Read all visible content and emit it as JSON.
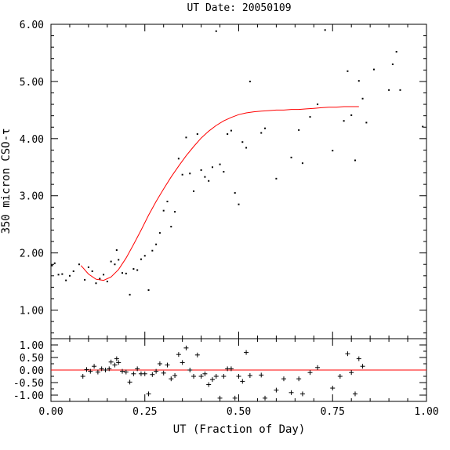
{
  "chart_data": [
    {
      "type": "scatter",
      "title": "UT Date: 20050109",
      "xlabel": "",
      "ylabel": "350 micron CSO-τ",
      "xlim": [
        0.0,
        1.0
      ],
      "ylim": [
        0.5,
        6.0
      ],
      "ytick_labels": [
        "1.00",
        "2.00",
        "3.00",
        "4.00",
        "5.00",
        "6.00"
      ],
      "marker_color": "#000000",
      "fit_color": "#ff0000",
      "series": [
        {
          "marker": "dot",
          "x": [
            0.003,
            0.01,
            0.02,
            0.03,
            0.04,
            0.05,
            0.06,
            0.075,
            0.09,
            0.1,
            0.11,
            0.12,
            0.13,
            0.14,
            0.15,
            0.16,
            0.17,
            0.175,
            0.18,
            0.19,
            0.2,
            0.21,
            0.22,
            0.23,
            0.24,
            0.25,
            0.26,
            0.27,
            0.28,
            0.29,
            0.3,
            0.31,
            0.32,
            0.33,
            0.34,
            0.35,
            0.36,
            0.37,
            0.38,
            0.39,
            0.4,
            0.41,
            0.42,
            0.43,
            0.44,
            0.45,
            0.46,
            0.47,
            0.48,
            0.49,
            0.5,
            0.51,
            0.52,
            0.53,
            0.56,
            0.57,
            0.6,
            0.64,
            0.66,
            0.67,
            0.69,
            0.71,
            0.73,
            0.75,
            0.78,
            0.79,
            0.8,
            0.81,
            0.82,
            0.83,
            0.84,
            0.86,
            0.9,
            0.91,
            0.92,
            0.93,
            0.99
          ],
          "y": [
            1.78,
            1.82,
            1.62,
            1.63,
            1.52,
            1.6,
            1.68,
            1.8,
            1.53,
            1.75,
            1.68,
            1.47,
            1.55,
            1.62,
            1.5,
            1.85,
            1.8,
            2.05,
            1.88,
            1.65,
            1.64,
            1.27,
            1.72,
            1.7,
            1.89,
            1.95,
            1.35,
            2.04,
            2.15,
            2.35,
            2.74,
            2.9,
            2.46,
            2.72,
            3.65,
            3.37,
            4.02,
            3.39,
            3.08,
            4.08,
            3.45,
            3.33,
            3.26,
            3.5,
            5.88,
            3.55,
            3.42,
            4.08,
            4.14,
            3.05,
            2.85,
            3.94,
            3.84,
            5.0,
            4.1,
            4.18,
            3.3,
            3.67,
            4.15,
            3.57,
            4.38,
            4.6,
            5.9,
            3.79,
            4.31,
            5.18,
            4.41,
            3.62,
            5.01,
            4.7,
            4.28,
            5.21,
            4.85,
            5.3,
            5.52,
            4.85,
            4.21
          ]
        },
        {
          "name": "",
          "marker": "line",
          "x": [
            0.08,
            0.1,
            0.12,
            0.14,
            0.16,
            0.18,
            0.2,
            0.22,
            0.24,
            0.26,
            0.28,
            0.3,
            0.32,
            0.34,
            0.36,
            0.38,
            0.4,
            0.42,
            0.44,
            0.46,
            0.48,
            0.5,
            0.52,
            0.54,
            0.56,
            0.58,
            0.6,
            0.62,
            0.64,
            0.66,
            0.68,
            0.7,
            0.72,
            0.74,
            0.76,
            0.78,
            0.8,
            0.82
          ],
          "y": [
            1.78,
            1.63,
            1.54,
            1.52,
            1.58,
            1.71,
            1.91,
            2.15,
            2.4,
            2.66,
            2.9,
            3.12,
            3.33,
            3.52,
            3.7,
            3.86,
            4.01,
            4.13,
            4.23,
            4.31,
            4.37,
            4.42,
            4.45,
            4.47,
            4.48,
            4.49,
            4.5,
            4.5,
            4.51,
            4.51,
            4.52,
            4.53,
            4.54,
            4.55,
            4.55,
            4.56,
            4.56,
            4.56
          ]
        }
      ]
    },
    {
      "type": "scatter",
      "title": "",
      "xlabel": "UT (Fraction of Day)",
      "ylabel": "",
      "xlim": [
        0.0,
        1.0
      ],
      "ylim": [
        -1.25,
        1.25
      ],
      "xtick_labels": [
        "0.00",
        "0.25",
        "0.50",
        "0.75",
        "1.00"
      ],
      "ytick_labels": [
        "1.00",
        "0.50",
        "0.00",
        "-0.50",
        "-1.00"
      ],
      "series": [
        {
          "marker": "plus",
          "x": [
            0.085,
            0.095,
            0.105,
            0.115,
            0.125,
            0.135,
            0.145,
            0.155,
            0.16,
            0.17,
            0.175,
            0.18,
            0.19,
            0.2,
            0.21,
            0.22,
            0.23,
            0.24,
            0.25,
            0.26,
            0.27,
            0.28,
            0.29,
            0.3,
            0.31,
            0.32,
            0.33,
            0.34,
            0.35,
            0.36,
            0.37,
            0.38,
            0.39,
            0.4,
            0.41,
            0.42,
            0.43,
            0.44,
            0.45,
            0.46,
            0.47,
            0.48,
            0.49,
            0.5,
            0.51,
            0.52,
            0.53,
            0.56,
            0.57,
            0.6,
            0.62,
            0.64,
            0.66,
            0.67,
            0.69,
            0.71,
            0.75,
            0.77,
            0.79,
            0.8,
            0.81,
            0.82,
            0.83
          ],
          "y": [
            -0.25,
            0.02,
            -0.05,
            0.15,
            -0.08,
            0.05,
            0.0,
            0.05,
            0.32,
            0.2,
            0.45,
            0.3,
            -0.05,
            -0.08,
            -0.48,
            -0.15,
            0.05,
            -0.15,
            -0.15,
            -0.95,
            -0.18,
            -0.05,
            0.25,
            -0.12,
            0.2,
            -0.35,
            -0.22,
            0.62,
            0.3,
            0.88,
            0.0,
            -0.25,
            0.6,
            -0.25,
            -0.15,
            -0.58,
            -0.38,
            -0.25,
            -1.12,
            -0.25,
            0.05,
            0.05,
            -1.12,
            -0.25,
            -0.45,
            0.7,
            -0.22,
            -0.2,
            -1.12,
            -0.8,
            -0.35,
            -0.9,
            -0.35,
            -0.95,
            -0.1,
            0.1,
            -0.72,
            -0.25,
            0.65,
            -0.1,
            -0.95,
            0.45,
            0.15
          ]
        }
      ],
      "reference_line": 0.0
    }
  ]
}
